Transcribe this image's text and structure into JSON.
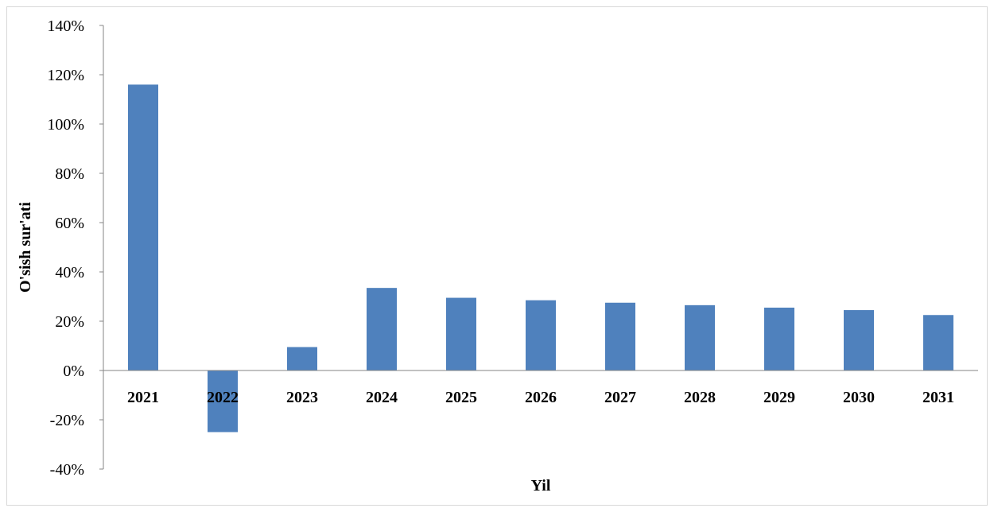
{
  "chart_data": {
    "type": "bar",
    "categories": [
      "2021",
      "2022",
      "2023",
      "2024",
      "2025",
      "2026",
      "2027",
      "2028",
      "2029",
      "2030",
      "2031"
    ],
    "values": [
      116,
      -25,
      9.5,
      33.5,
      29.5,
      28.5,
      27.5,
      26.5,
      25.5,
      24.5,
      22.5
    ],
    "unit": "%",
    "xlabel": "Yil",
    "ylabel": "O'sish sur'ati",
    "ylim": [
      -40,
      140
    ],
    "yticks": [
      "140%",
      "120%",
      "100%",
      "80%",
      "60%",
      "40%",
      "20%",
      "0%",
      "-20%",
      "-40%"
    ],
    "ytick_values": [
      140,
      120,
      100,
      80,
      60,
      40,
      20,
      0,
      -20,
      -40
    ],
    "grid": false,
    "legend": "none",
    "bar_color": "#4f81bd"
  }
}
